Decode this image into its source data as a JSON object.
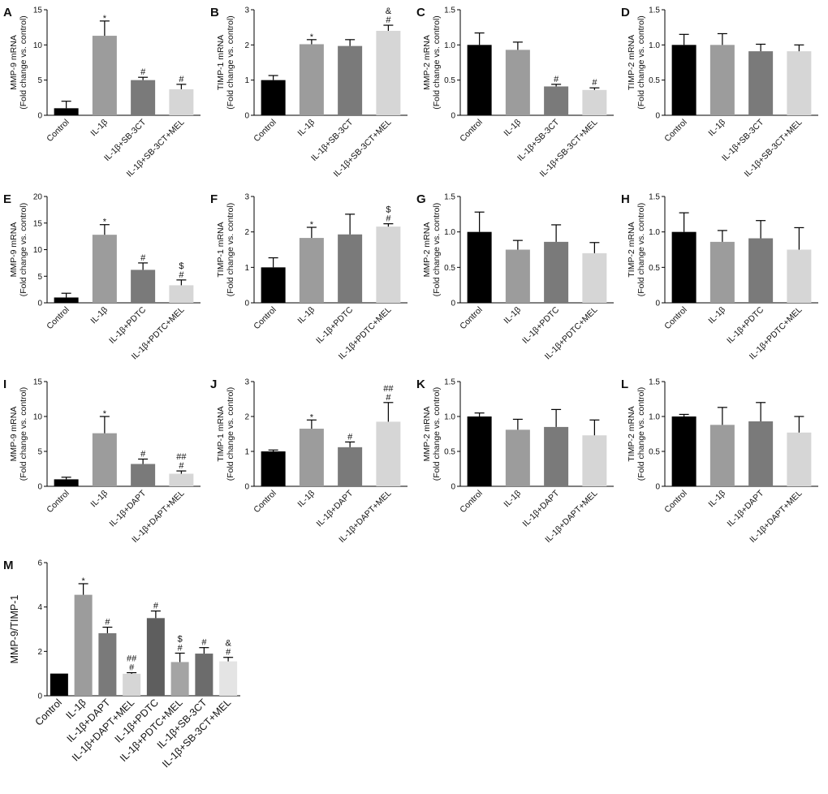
{
  "chart_data": [
    {
      "panel": "A",
      "type": "bar",
      "ylabel": [
        "MMP-9 mRNA",
        "(Fold change vs. control)"
      ],
      "ylim": [
        0,
        15
      ],
      "yticks": [
        0,
        5,
        10,
        15
      ],
      "tick_decimals": 0,
      "categories": [
        "Control",
        "IL-1β",
        "IL-1β+SB-3CT",
        "IL-1β+SB-3CT+MEL"
      ],
      "values": [
        1.0,
        11.3,
        5.0,
        3.7
      ],
      "errors": [
        1.0,
        2.1,
        0.4,
        0.7
      ],
      "annotations": [
        "",
        "*",
        "#",
        "#"
      ]
    },
    {
      "panel": "B",
      "type": "bar",
      "ylabel": [
        "TIMP-1 mRNA",
        "(Fold change vs. control)"
      ],
      "ylim": [
        0,
        3
      ],
      "yticks": [
        0,
        1,
        2,
        3
      ],
      "tick_decimals": 0,
      "categories": [
        "Control",
        "IL-1β",
        "IL-1β+SB-3CT",
        "IL-1β+SB-3CT+MEL"
      ],
      "values": [
        1.0,
        2.02,
        1.97,
        2.4
      ],
      "errors": [
        0.13,
        0.13,
        0.18,
        0.16
      ],
      "annotations": [
        "",
        "*",
        "",
        "&\n#"
      ]
    },
    {
      "panel": "C",
      "type": "bar",
      "ylabel": [
        "MMP-2 mRNA",
        "(Fold change vs. control)"
      ],
      "ylim": [
        0,
        1.5
      ],
      "yticks": [
        0,
        0.5,
        1.0,
        1.5
      ],
      "tick_decimals": 1,
      "categories": [
        "Control",
        "IL-1β",
        "IL-1β+SB-3CT",
        "IL-1β+SB-3CT+MEL"
      ],
      "values": [
        1.0,
        0.93,
        0.41,
        0.36
      ],
      "errors": [
        0.17,
        0.11,
        0.03,
        0.03
      ],
      "annotations": [
        "",
        "",
        "#",
        "#"
      ]
    },
    {
      "panel": "D",
      "type": "bar",
      "ylabel": [
        "TIMP-2 mRNA",
        "(Fold change vs. control)"
      ],
      "ylim": [
        0,
        1.5
      ],
      "yticks": [
        0,
        0.5,
        1.0,
        1.5
      ],
      "tick_decimals": 1,
      "categories": [
        "Control",
        "IL-1β",
        "IL-1β+SB-3CT",
        "IL-1β+SB-3CT+MEL"
      ],
      "values": [
        1.0,
        1.0,
        0.91,
        0.91
      ],
      "errors": [
        0.15,
        0.16,
        0.1,
        0.09
      ],
      "annotations": [
        "",
        "",
        "",
        ""
      ]
    },
    {
      "panel": "E",
      "type": "bar",
      "ylabel": [
        "MMP-9 mRNA",
        "(Fold change vs. control)"
      ],
      "ylim": [
        0,
        20
      ],
      "yticks": [
        0,
        5,
        10,
        15,
        20
      ],
      "tick_decimals": 0,
      "categories": [
        "Control",
        "IL-1β",
        "IL-1β+PDTC",
        "IL-1β+PDTC+MEL"
      ],
      "values": [
        1.0,
        12.8,
        6.2,
        3.3
      ],
      "errors": [
        0.8,
        1.9,
        1.3,
        1.0
      ],
      "annotations": [
        "",
        "*",
        "#",
        "$\n#"
      ]
    },
    {
      "panel": "F",
      "type": "bar",
      "ylabel": [
        "TIMP-1 mRNA",
        "(Fold change vs. control)"
      ],
      "ylim": [
        0,
        3
      ],
      "yticks": [
        0,
        1,
        2,
        3
      ],
      "tick_decimals": 0,
      "categories": [
        "Control",
        "IL-1β",
        "IL-1β+PDTC",
        "IL-1β+PDTC+MEL"
      ],
      "values": [
        1.0,
        1.83,
        1.93,
        2.15
      ],
      "errors": [
        0.27,
        0.3,
        0.57,
        0.08
      ],
      "annotations": [
        "",
        "*",
        "",
        "$\n#"
      ]
    },
    {
      "panel": "G",
      "type": "bar",
      "ylabel": [
        "MMP-2 mRNA",
        "(Fold change vs. control)"
      ],
      "ylim": [
        0,
        1.5
      ],
      "yticks": [
        0,
        0.5,
        1.0,
        1.5
      ],
      "tick_decimals": 1,
      "categories": [
        "Control",
        "IL-1β",
        "IL-1β+PDTC",
        "IL-1β+PDTC+MEL"
      ],
      "values": [
        1.0,
        0.75,
        0.86,
        0.7
      ],
      "errors": [
        0.28,
        0.13,
        0.24,
        0.15
      ],
      "annotations": [
        "",
        "",
        "",
        ""
      ]
    },
    {
      "panel": "H",
      "type": "bar",
      "ylabel": [
        "TIMP-2 mRNA",
        "(Fold change vs. control)"
      ],
      "ylim": [
        0,
        1.5
      ],
      "yticks": [
        0,
        0.5,
        1.0,
        1.5
      ],
      "tick_decimals": 1,
      "categories": [
        "Control",
        "IL-1β",
        "IL-1β+PDTC",
        "IL-1β+PDTC+MEL"
      ],
      "values": [
        1.0,
        0.86,
        0.91,
        0.75
      ],
      "errors": [
        0.27,
        0.16,
        0.25,
        0.31
      ],
      "annotations": [
        "",
        "",
        "",
        ""
      ]
    },
    {
      "panel": "I",
      "type": "bar",
      "ylabel": [
        "MMP-9 mRNA",
        "(Fold change vs. control)"
      ],
      "ylim": [
        0,
        15
      ],
      "yticks": [
        0,
        5,
        10,
        15
      ],
      "tick_decimals": 0,
      "categories": [
        "Control",
        "IL-1β",
        "IL-1β+DAPT",
        "IL-1β+DAPT+MEL"
      ],
      "values": [
        1.0,
        7.6,
        3.2,
        1.8
      ],
      "errors": [
        0.3,
        2.4,
        0.7,
        0.4
      ],
      "annotations": [
        "",
        "*",
        "#",
        "##\n#"
      ]
    },
    {
      "panel": "J",
      "type": "bar",
      "ylabel": [
        "TIMP-1 mRNA",
        "(Fold change vs. control)"
      ],
      "ylim": [
        0,
        3
      ],
      "yticks": [
        0,
        1,
        2,
        3
      ],
      "tick_decimals": 0,
      "categories": [
        "Control",
        "IL-1β",
        "IL-1β+DAPT",
        "IL-1β+DAPT+MEL"
      ],
      "values": [
        1.0,
        1.65,
        1.12,
        1.85
      ],
      "errors": [
        0.04,
        0.25,
        0.15,
        0.55
      ],
      "annotations": [
        "",
        "*",
        "#",
        "##\n#"
      ]
    },
    {
      "panel": "K",
      "type": "bar",
      "ylabel": [
        "MMP-2 mRNA",
        "(Fold change vs. control)"
      ],
      "ylim": [
        0,
        1.5
      ],
      "yticks": [
        0,
        0.5,
        1.0,
        1.5
      ],
      "tick_decimals": 1,
      "categories": [
        "Control",
        "IL-1β",
        "IL-1β+DAPT",
        "IL-1β+DAPT+MEL"
      ],
      "values": [
        1.0,
        0.81,
        0.85,
        0.73
      ],
      "errors": [
        0.05,
        0.15,
        0.25,
        0.22
      ],
      "annotations": [
        "",
        "",
        "",
        ""
      ]
    },
    {
      "panel": "L",
      "type": "bar",
      "ylabel": [
        "TIMP-2 mRNA",
        "(Fold change vs. control)"
      ],
      "ylim": [
        0,
        1.5
      ],
      "yticks": [
        0,
        0.5,
        1.0,
        1.5
      ],
      "tick_decimals": 1,
      "categories": [
        "Control",
        "IL-1β",
        "IL-1β+DAPT",
        "IL-1β+DAPT+MEL"
      ],
      "values": [
        1.0,
        0.88,
        0.93,
        0.77
      ],
      "errors": [
        0.03,
        0.25,
        0.27,
        0.23
      ],
      "annotations": [
        "",
        "",
        "",
        ""
      ]
    },
    {
      "panel": "M",
      "type": "bar",
      "ylabel": [
        "MMP-9/TIMP-1"
      ],
      "ylim": [
        0,
        6
      ],
      "yticks": [
        0,
        2,
        4,
        6
      ],
      "tick_decimals": 0,
      "categories": [
        "Control",
        "IL-1β",
        "IL-1β+DAPT",
        "IL-1β+DAPT+MEL",
        "IL-1β+PDTC",
        "IL-1β+PDTC+MEL",
        "IL-1β+SB-3CT",
        "IL-1β+SB-3CT+MEL"
      ],
      "values": [
        1.0,
        4.55,
        2.82,
        0.99,
        3.5,
        1.52,
        1.9,
        1.55
      ],
      "errors": [
        0.0,
        0.5,
        0.27,
        0.05,
        0.32,
        0.4,
        0.27,
        0.18
      ],
      "annotations": [
        "",
        "*",
        "#",
        "##\n#",
        "#",
        "$\n#",
        "#",
        "&\n#"
      ]
    }
  ],
  "colors": {
    "Control": "#000000",
    "IL-1β": "#9c9c9c",
    "treatment": "#7a7a7a",
    "treatment+MEL": "#d6d6d6",
    "M_PDTC": "#5e5e5e",
    "M_PDTC+MEL": "#a4a4a4",
    "M_SB": "#6c6c6c",
    "M_SB+MEL": "#e4e4e4"
  }
}
